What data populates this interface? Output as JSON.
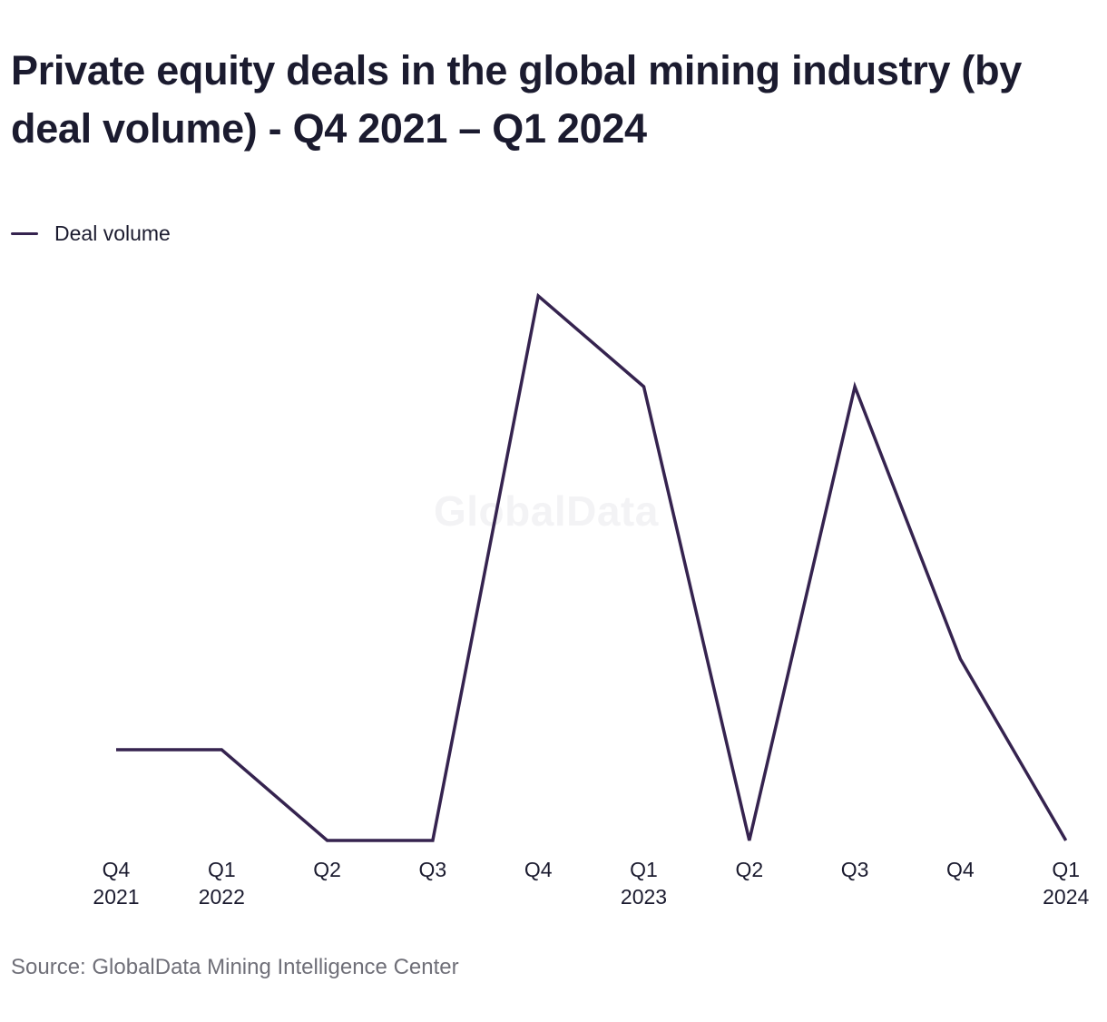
{
  "chart_data": {
    "type": "line",
    "title": "Private equity deals in the global mining industry (by deal volume) - Q4 2021 – Q1 2024",
    "categories": [
      [
        "Q4",
        "2021"
      ],
      [
        "Q1",
        "2022"
      ],
      [
        "Q2",
        ""
      ],
      [
        "Q3",
        ""
      ],
      [
        "Q4",
        ""
      ],
      [
        "Q1",
        "2023"
      ],
      [
        "Q2",
        ""
      ],
      [
        "Q3",
        ""
      ],
      [
        "Q4",
        ""
      ],
      [
        "Q1",
        "2024"
      ]
    ],
    "series": [
      {
        "name": "Deal volume",
        "values": [
          1,
          1,
          0,
          0,
          6,
          5,
          0,
          5,
          2,
          0
        ],
        "color": "#35234f"
      }
    ],
    "xlabel": "",
    "ylabel": "",
    "ylim": [
      0,
      6
    ],
    "grid": false,
    "legend_position": "top-left",
    "y_axis_labels_shown": false
  },
  "watermark": "GlobalData",
  "source": "Source: GlobalData Mining Intelligence Center"
}
